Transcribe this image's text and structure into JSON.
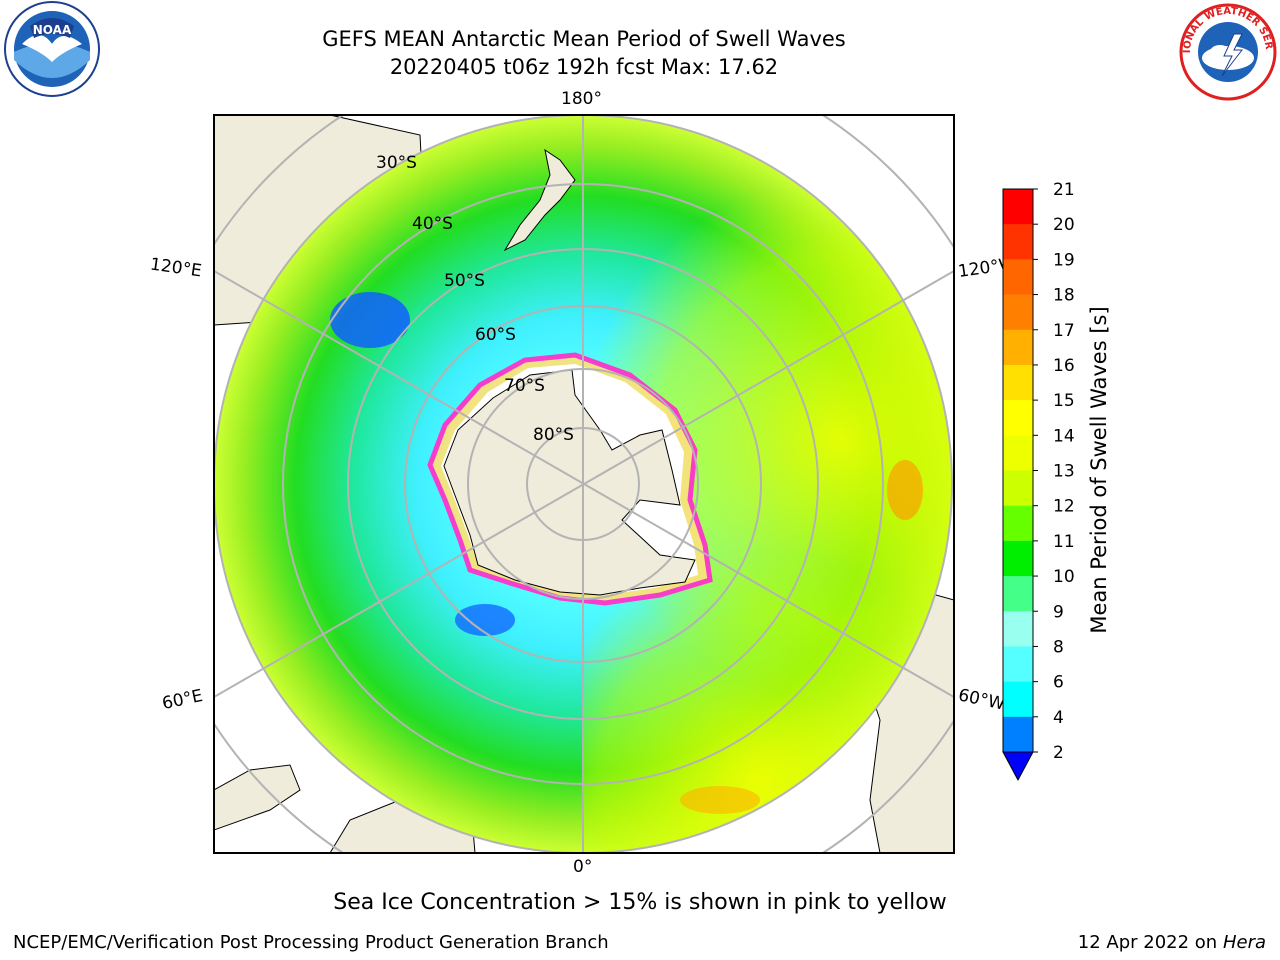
{
  "title": {
    "line1": "GEFS MEAN Antarctic Mean Period of Swell Waves",
    "line2": "20220405 t06z 192h fcst   Max: 17.62"
  },
  "logos": {
    "noaa": {
      "icon": "noaa-logo-icon",
      "text": "NOAA"
    },
    "nws": {
      "icon": "nws-logo-icon",
      "text": "NATIONAL WEATHER SERVICE"
    }
  },
  "map": {
    "projection": "south-polar-stereographic",
    "longitude_labels": {
      "top": "180°",
      "bottom": "0°",
      "left_upper": "120°E",
      "left_lower": "60°E",
      "right_upper": "120°W",
      "right_lower": "60°W"
    },
    "latitude_labels": [
      "30°S",
      "40°S",
      "50°S",
      "60°S",
      "70°S",
      "80°S"
    ],
    "colors": {
      "land": "#efecdc",
      "ocean_frame": "#ffffff",
      "grid": "#b3b3b3",
      "sea_ice_edge": "#ff33cc",
      "sea_ice_inner": "#f9e27c"
    }
  },
  "colorbar": {
    "label": "Mean Period of Swell Waves [s]",
    "ticks": [
      "21",
      "20",
      "19",
      "18",
      "17",
      "16",
      "15",
      "14",
      "13",
      "12",
      "11",
      "10",
      "9",
      "8",
      "6",
      "4",
      "2"
    ],
    "colors_top_to_bottom": [
      "#ff0000",
      "#ff3300",
      "#ff6600",
      "#ff8000",
      "#ffb000",
      "#ffe000",
      "#ffff00",
      "#eeff00",
      "#ccff00",
      "#66ff00",
      "#00ee00",
      "#44ff88",
      "#99ffee",
      "#55ffff",
      "#00ffff",
      "#0080ff",
      "#0000ff"
    ],
    "extend": "min"
  },
  "note": "Sea Ice Concentration > 15% is shown in pink to yellow",
  "credit": "NCEP/EMC/Verification Post Processing Product Generation Branch",
  "datestamp": {
    "date": "12 Apr 2022 on",
    "machine": "Hera"
  }
}
